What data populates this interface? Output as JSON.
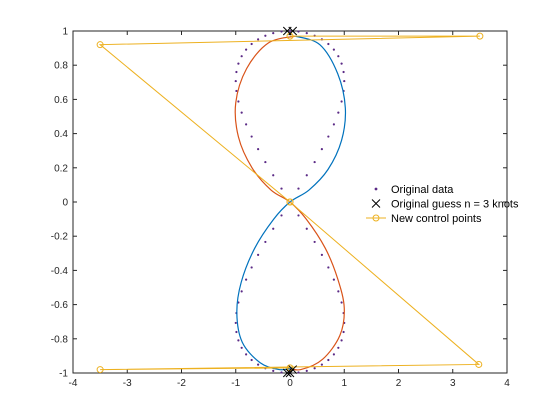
{
  "chart_data": {
    "type": "line",
    "xlim": [
      -4,
      4
    ],
    "ylim": [
      -1,
      1
    ],
    "x_ticks": [
      -4,
      -3,
      -2,
      -1,
      0,
      1,
      2,
      3,
      4
    ],
    "y_ticks": [
      -1,
      -0.8,
      -0.6,
      -0.4,
      -0.2,
      0,
      0.2,
      0.4,
      0.6,
      0.8,
      1
    ],
    "x_tick_labels": [
      "-4",
      "-3",
      "-2",
      "-1",
      "0",
      "1",
      "2",
      "3",
      "4"
    ],
    "y_tick_labels": [
      "-1",
      "-0.8",
      "-0.6",
      "-0.4",
      "-0.2",
      "0",
      "0.2",
      "0.4",
      "0.6",
      "0.8",
      "1"
    ],
    "grid": false,
    "legend_position": "center-right",
    "series": [
      {
        "name": "Original data",
        "kind": "scatter",
        "marker": "dot",
        "color": "#5b2a86",
        "param": "x = sin(2t), y = cos(t), t in [0, 2pi], 80 points"
      },
      {
        "name": "Original guess n = 3 knots",
        "kind": "scatter",
        "marker": "x",
        "color": "#000000",
        "x": [
          -0.05,
          0.05,
          0,
          -0.05,
          0.05
        ],
        "y": [
          1,
          1,
          -1,
          -1,
          -0.98
        ]
      },
      {
        "name": "New control points",
        "kind": "line",
        "marker": "circle",
        "color": "#edb120",
        "x": [
          0,
          3.5,
          -3.5,
          0,
          0,
          3.48,
          -3.5,
          0
        ],
        "y": [
          0.97,
          0.97,
          0.92,
          0,
          0,
          -0.95,
          -0.98,
          -0.97
        ]
      }
    ],
    "fit_curves": [
      {
        "color": "#d95319",
        "x": [
          0.1,
          -0.4,
          -0.8,
          -1.0,
          -0.95,
          -0.7,
          -0.35,
          0,
          0.3,
          0.65,
          0.88,
          1.0,
          0.92,
          0.6,
          0.2,
          -0.05
        ],
        "y": [
          0.97,
          0.93,
          0.78,
          0.58,
          0.38,
          0.2,
          0.07,
          0,
          -0.1,
          -0.27,
          -0.45,
          -0.62,
          -0.78,
          -0.92,
          -0.98,
          -0.97
        ]
      },
      {
        "color": "#0072bd",
        "x": [
          0.1,
          0.55,
          0.88,
          1.02,
          0.95,
          0.7,
          0.35,
          0,
          -0.3,
          -0.65,
          -0.9,
          -0.98,
          -0.88,
          -0.55,
          -0.2,
          0.05
        ],
        "y": [
          0.97,
          0.92,
          0.75,
          0.55,
          0.36,
          0.19,
          0.07,
          0,
          -0.1,
          -0.27,
          -0.47,
          -0.65,
          -0.82,
          -0.94,
          -0.98,
          -0.97
        ]
      }
    ]
  }
}
